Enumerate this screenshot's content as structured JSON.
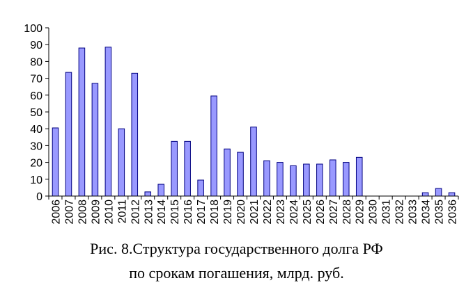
{
  "chart_data": {
    "type": "bar",
    "categories": [
      "2006",
      "2007",
      "2008",
      "2009",
      "2010",
      "2011",
      "2012",
      "2013",
      "2014",
      "2015",
      "2016",
      "2017",
      "2018",
      "2019",
      "2020",
      "2021",
      "2022",
      "2023",
      "2024",
      "2025",
      "2026",
      "2027",
      "2028",
      "2029",
      "2030",
      "2031",
      "2032",
      "2033",
      "2034",
      "2035",
      "2036"
    ],
    "values": [
      40.5,
      73.5,
      88,
      67,
      88.5,
      40,
      73,
      2.5,
      7,
      32.5,
      32.5,
      9.5,
      59.5,
      28,
      26,
      41,
      21,
      20,
      18,
      19,
      19,
      21.5,
      20,
      23,
      0,
      0,
      0,
      0,
      2,
      4.5,
      2
    ],
    "ylim": [
      0,
      100
    ],
    "yticks": [
      0,
      10,
      20,
      30,
      40,
      50,
      60,
      70,
      80,
      90,
      100
    ],
    "bar_color": "#9999ff",
    "bar_stroke": "#000080",
    "grid": false,
    "legend": "none"
  },
  "caption": {
    "line1": "Рис. 8.Структура государственного долга РФ",
    "line2": "по срокам погашения, млрд. руб."
  }
}
